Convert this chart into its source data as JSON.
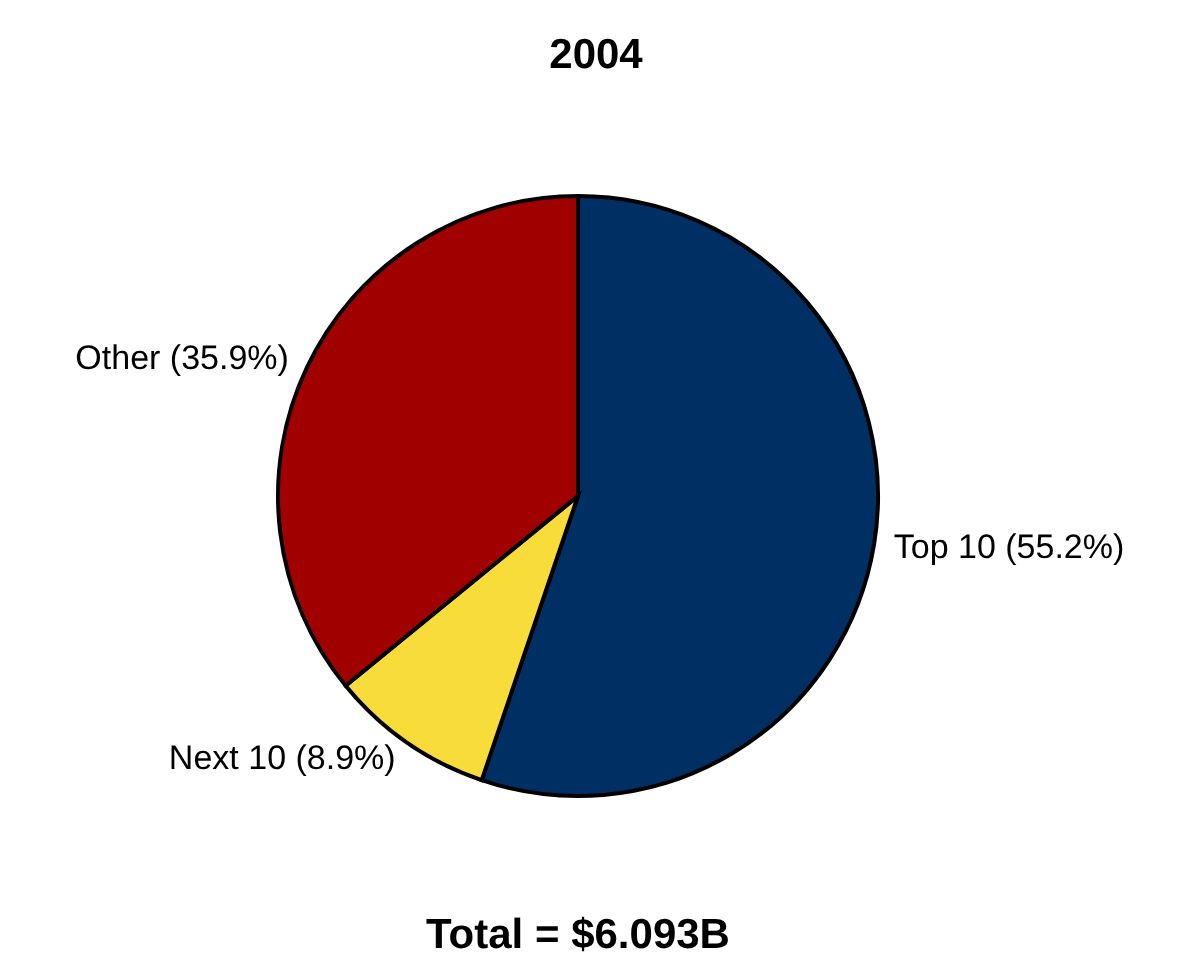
{
  "chart_data": {
    "type": "pie",
    "title": "2004",
    "categories": [
      "Top 10 (55.2%)",
      "Next 10 (8.9%)",
      "Other (35.9%)"
    ],
    "values": [
      55.2,
      8.9,
      35.9
    ],
    "colors": [
      "#003063",
      "#f7dc3a",
      "#a00000"
    ],
    "annotations": [
      "Total = $6.093B"
    ],
    "legend": false
  }
}
